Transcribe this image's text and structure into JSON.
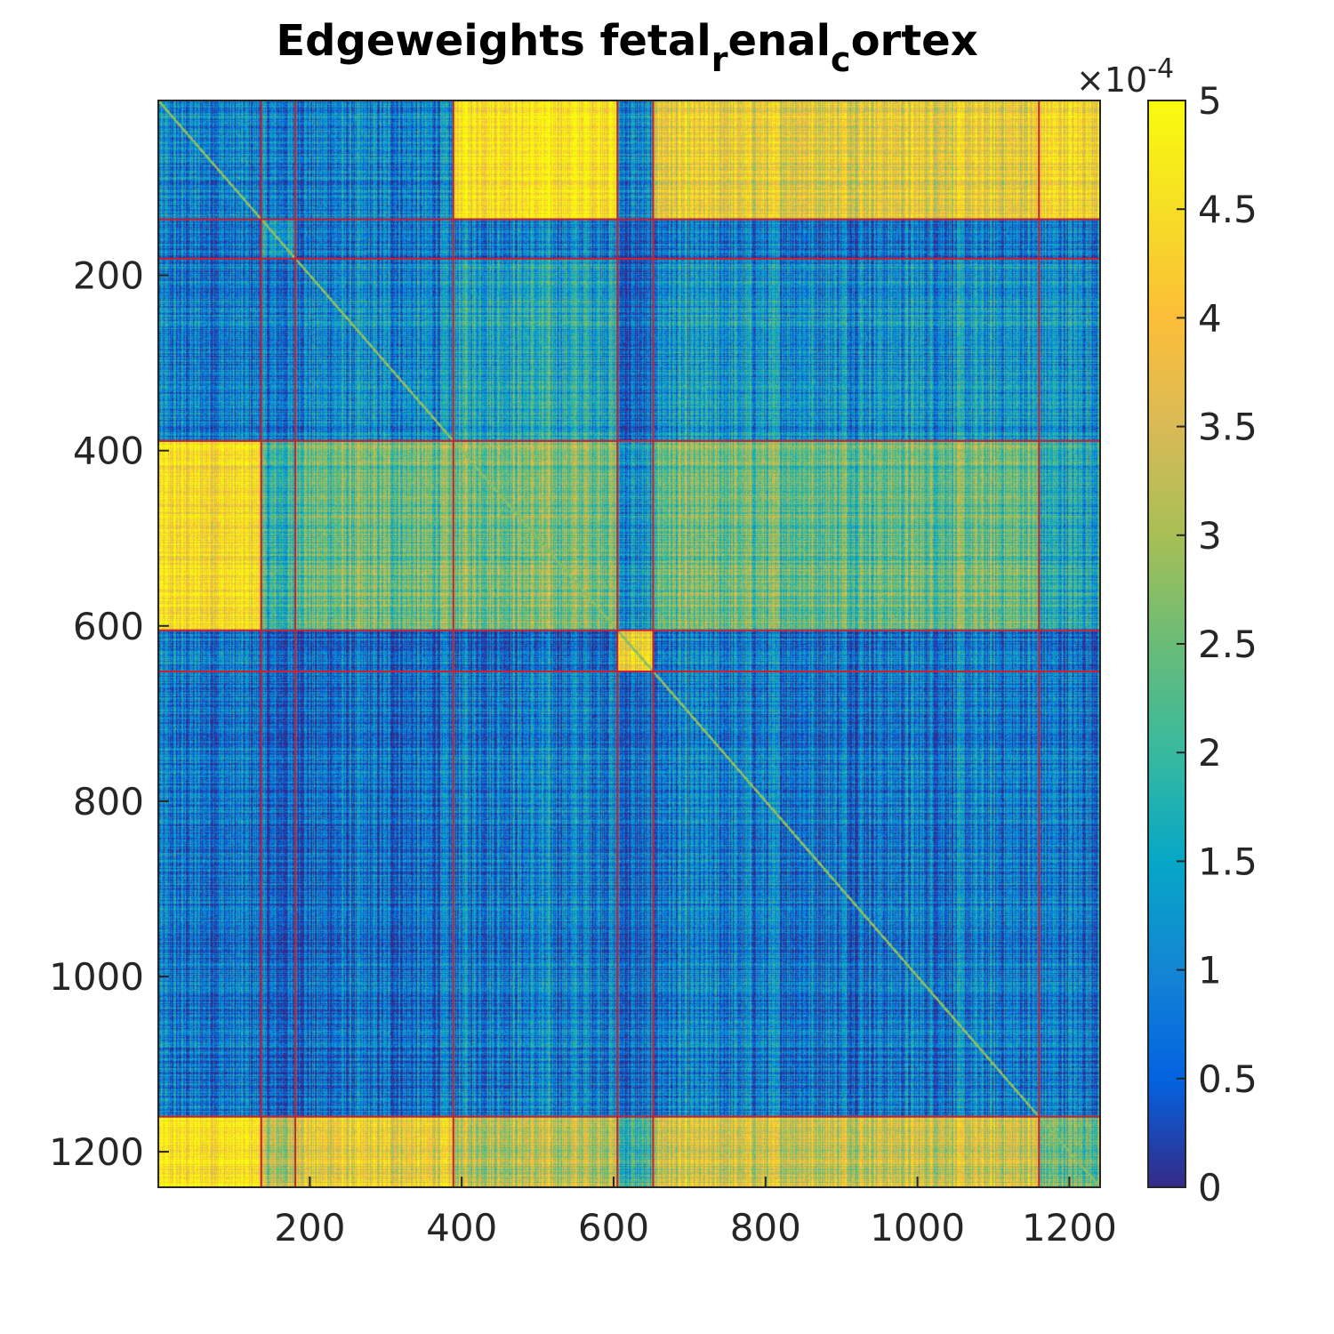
{
  "chart_data": {
    "type": "heatmap",
    "title": {
      "parts": [
        {
          "text": "Edgeweights fetal",
          "sub": false
        },
        {
          "text": "r",
          "sub": true
        },
        {
          "text": "enal",
          "sub": false
        },
        {
          "text": "c",
          "sub": true
        },
        {
          "text": "ortex",
          "sub": false
        }
      ]
    },
    "matrix_size": 1240,
    "xlim": [
      1,
      1240
    ],
    "ylim": [
      1,
      1240
    ],
    "y_reversed": true,
    "x_ticks": [
      200,
      400,
      600,
      800,
      1000,
      1200
    ],
    "x_tick_labels": [
      "200",
      "400",
      "600",
      "800",
      "1000",
      "1200"
    ],
    "y_ticks": [
      200,
      400,
      600,
      800,
      1000,
      1200
    ],
    "y_tick_labels": [
      "200",
      "400",
      "600",
      "800",
      "1000",
      "1200"
    ],
    "colorbar": {
      "colormap": "parula",
      "clim": [
        0,
        5
      ],
      "ticks": [
        0,
        0.5,
        1,
        1.5,
        2,
        2.5,
        3,
        3.5,
        4,
        4.5,
        5
      ],
      "tick_labels": [
        "0",
        "0.5",
        "1",
        "1.5",
        "2",
        "2.5",
        "3",
        "3.5",
        "4",
        "4.5",
        "5"
      ],
      "exponent_base": "×10",
      "exponent_power": "-4"
    },
    "module_boundaries": [
      136,
      181,
      389,
      605,
      652,
      1160
    ],
    "block_means": [
      [
        0.9,
        0.8,
        0.9,
        4.6,
        0.9,
        3.8,
        4.2
      ],
      [
        0.6,
        1.2,
        0.7,
        0.9,
        0.3,
        0.7,
        0.8
      ],
      [
        0.8,
        0.7,
        1.0,
        1.6,
        0.4,
        1.2,
        1.2
      ],
      [
        4.3,
        1.8,
        2.4,
        2.6,
        1.1,
        2.4,
        1.6
      ],
      [
        0.8,
        0.4,
        0.5,
        0.6,
        4.0,
        0.8,
        0.6
      ],
      [
        0.7,
        0.4,
        0.6,
        0.9,
        0.5,
        0.8,
        0.8
      ],
      [
        4.5,
        3.0,
        3.8,
        3.2,
        1.8,
        3.4,
        2.4
      ]
    ],
    "boundary_line_color": "#cc1f2f"
  }
}
